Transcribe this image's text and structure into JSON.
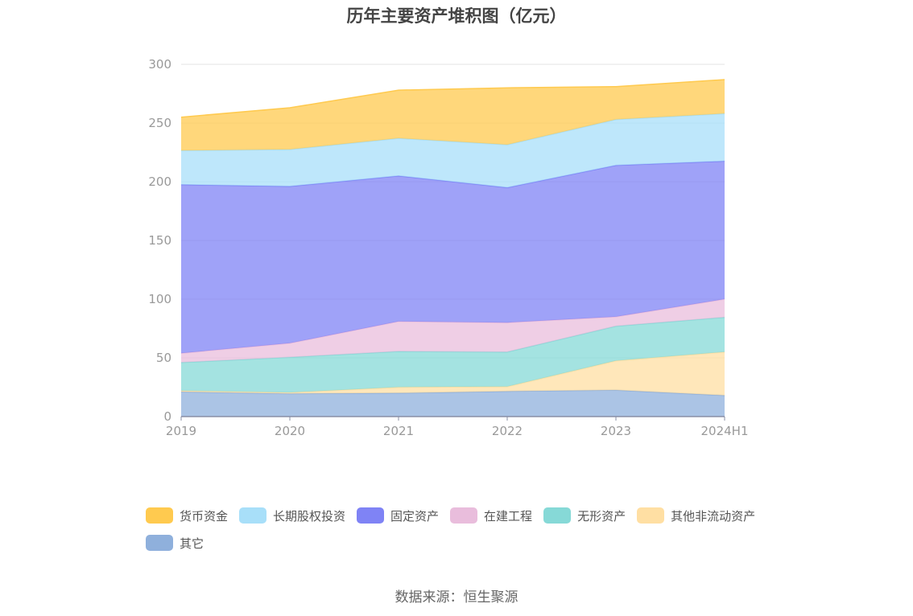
{
  "title": "历年主要资产堆积图（亿元）",
  "source": "数据来源：恒生聚源",
  "chart_data": {
    "type": "area",
    "stacked": true,
    "title": "历年主要资产堆积图（亿元）",
    "categories": [
      "2019",
      "2020",
      "2021",
      "2022",
      "2023",
      "2024H1"
    ],
    "ylim": [
      0,
      300
    ],
    "yticks": [
      0,
      50,
      100,
      150,
      200,
      250,
      300
    ],
    "grid": true,
    "legend_position": "bottom",
    "series": [
      {
        "name": "其它",
        "color": "#8FB0DC",
        "values": [
          21,
          19.5,
          20,
          21.5,
          22.5,
          18
        ]
      },
      {
        "name": "其他非流动资产",
        "color": "#FFDFA3",
        "values": [
          1,
          1,
          5,
          4,
          25,
          37
        ]
      },
      {
        "name": "无形资产",
        "color": "#86D9D7",
        "values": [
          24,
          30,
          30.5,
          29.5,
          29.5,
          29.5
        ]
      },
      {
        "name": "在建工程",
        "color": "#E9BDDC",
        "values": [
          8,
          12,
          25.5,
          25,
          8,
          15.5
        ]
      },
      {
        "name": "固定资产",
        "color": "#7F83F5",
        "values": [
          143.5,
          133.5,
          124,
          115,
          129,
          117.5
        ]
      },
      {
        "name": "长期股权投资",
        "color": "#A8DFF9",
        "values": [
          29,
          31.5,
          32,
          36.5,
          39,
          40.5
        ]
      },
      {
        "name": "货币资金",
        "color": "#FFCA4F",
        "values": [
          28.5,
          35.5,
          41,
          48.5,
          28,
          29
        ]
      }
    ]
  },
  "legend": [
    {
      "name": "货币资金",
      "color": "#FFCA4F"
    },
    {
      "name": "长期股权投资",
      "color": "#A8DFF9"
    },
    {
      "name": "固定资产",
      "color": "#7F83F5"
    },
    {
      "name": "在建工程",
      "color": "#E9BDDC"
    },
    {
      "name": "无形资产",
      "color": "#86D9D7"
    },
    {
      "name": "其他非流动资产",
      "color": "#FFDFA3"
    },
    {
      "name": "其它",
      "color": "#8FB0DC"
    }
  ]
}
